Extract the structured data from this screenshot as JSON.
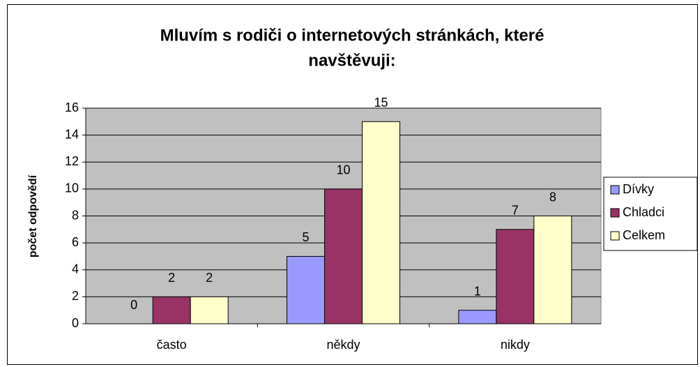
{
  "chart_data": {
    "type": "bar",
    "title": [
      "Mluvím s rodiči o internetových stránkách, které",
      "navštěvuji:"
    ],
    "y_label": "počet odpovědí",
    "categories": [
      "často",
      "někdy",
      "nikdy"
    ],
    "series": [
      {
        "name": "Dívky",
        "color": "#9999ff",
        "values": [
          0,
          5,
          1
        ]
      },
      {
        "name": "Chladci",
        "color": "#993366",
        "values": [
          2,
          10,
          7
        ]
      },
      {
        "name": "Celkem",
        "color": "#ffffcc",
        "values": [
          2,
          15,
          8
        ]
      }
    ],
    "ylim": [
      0,
      16
    ],
    "yticks": [
      0,
      2,
      4,
      6,
      8,
      10,
      12,
      14,
      16
    ],
    "grid": true,
    "legend": "right"
  }
}
